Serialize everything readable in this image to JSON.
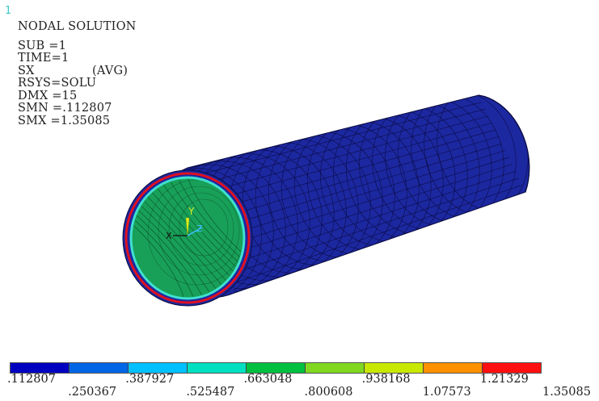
{
  "window_number": "1",
  "info": {
    "title": "NODAL SOLUTION",
    "lines": [
      {
        "text": "SUB =1"
      },
      {
        "text": "TIME=1"
      },
      {
        "text": "SX",
        "suffix": "(AVG)"
      },
      {
        "text": "RSYS=SOLU"
      },
      {
        "text": "DMX =15"
      },
      {
        "text": "SMN =.112807"
      },
      {
        "text": "SMX =1.35085"
      }
    ]
  },
  "triad": {
    "y_label": "Y",
    "z_label": "Z",
    "x_label": "X"
  },
  "legend": {
    "colors": [
      "#0000c0",
      "#0066e6",
      "#00c0ff",
      "#00e0c0",
      "#00c040",
      "#80d820",
      "#c8e800",
      "#ff9000",
      "#ff1010"
    ],
    "labels_top": [
      ".112807",
      ".387927",
      ".663048",
      ".938168",
      "1.21329"
    ],
    "labels_bottom": [
      ".250367",
      ".525487",
      ".800608",
      "1.07573",
      "1.35085"
    ]
  },
  "colors": {
    "cylinder_outer": "#1c28a0",
    "cylinder_inner": "#18a058",
    "mesh_line": "#0a0a40",
    "ring_red": "#e01020",
    "ring_cyan": "#40e0d0"
  }
}
